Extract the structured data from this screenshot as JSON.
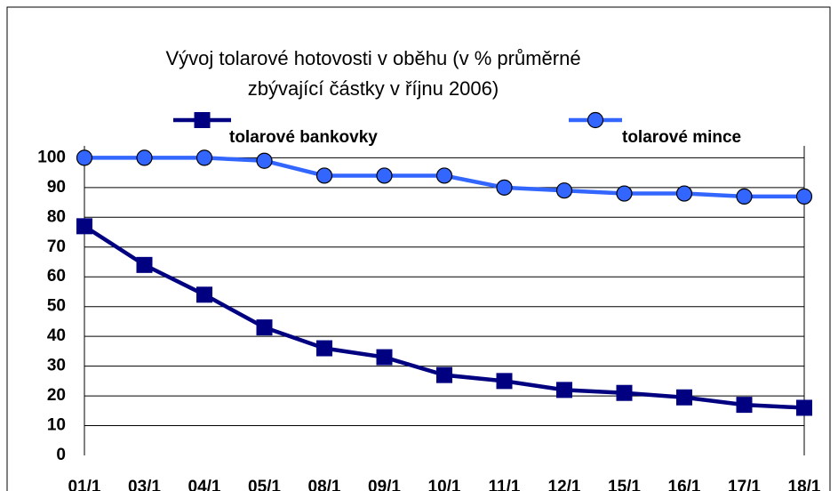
{
  "chart_data": {
    "type": "line",
    "title": [
      "Vývoj tolarové hotovosti v oběhu (v % průměrné",
      "zbývající částky v říjnu 2006)"
    ],
    "categories": [
      "01/1",
      "03/1",
      "04/1",
      "05/1",
      "08/1",
      "09/1",
      "10/1",
      "11/1",
      "12/1",
      "15/1",
      "16/1",
      "17/1",
      "18/1"
    ],
    "series": [
      {
        "name": "tolarové bankovky",
        "color": "#000080",
        "marker": "square",
        "values": [
          77,
          64,
          54,
          43,
          36,
          33,
          27,
          25,
          22,
          21,
          19.5,
          17,
          16
        ]
      },
      {
        "name": "tolarové mince",
        "color": "#3366ff",
        "marker": "circle",
        "values": [
          100,
          100,
          100,
          99,
          94,
          94,
          94,
          90,
          89,
          88,
          88,
          87,
          87
        ]
      }
    ],
    "ylim": [
      0,
      104
    ],
    "yticks": [
      0,
      10,
      20,
      30,
      40,
      50,
      60,
      70,
      80,
      90,
      100
    ],
    "grid": true
  }
}
